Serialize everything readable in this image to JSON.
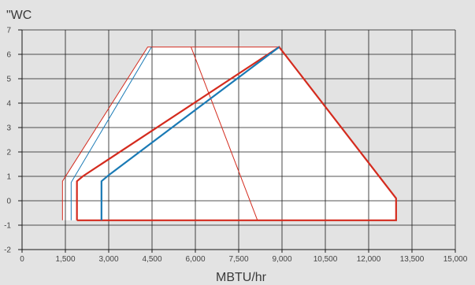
{
  "chart_data": {
    "type": "line",
    "ylabel": "\"WC",
    "xlabel": "MBTU/hr",
    "xlim": [
      0,
      15000
    ],
    "ylim": [
      -2,
      7
    ],
    "x_ticks": [
      0,
      1500,
      3000,
      4500,
      6000,
      7500,
      9000,
      10500,
      12000,
      13500,
      15000
    ],
    "x_tick_labels": [
      "0",
      "1,500",
      "3,000",
      "4,500",
      "6,000",
      "7,500",
      "9,000",
      "10,500",
      "12,000",
      "13,500",
      "15,000"
    ],
    "y_ticks": [
      -2,
      -1,
      0,
      1,
      2,
      3,
      4,
      5,
      6,
      7
    ],
    "y_tick_labels": [
      "-2",
      "-1",
      "0",
      "1",
      "2",
      "3",
      "4",
      "5",
      "6",
      "7"
    ],
    "grid": true,
    "envelope": {
      "fill": "#ffffff",
      "x": [
        1400,
        4350,
        8900,
        12950,
        12950,
        1400
      ],
      "y": [
        0.8,
        6.3,
        6.3,
        0.1,
        -0.8,
        -0.8
      ]
    },
    "series": [
      {
        "color": "#d42b1e",
        "width": 1,
        "x": [
          1400,
          1400,
          4350,
          8900
        ],
        "y": [
          -0.8,
          0.8,
          6.3,
          6.3
        ]
      },
      {
        "color": "#d42b1e",
        "width": 1,
        "x": [
          5850,
          8150
        ],
        "y": [
          6.3,
          -0.8
        ]
      },
      {
        "color": "#1a7ab5",
        "width": 1,
        "x": [
          1700,
          1700,
          4480
        ],
        "y": [
          -0.8,
          0.75,
          6.3
        ]
      },
      {
        "color": "#d42b1e",
        "width": 2.2,
        "x": [
          1900,
          1900,
          2100,
          8900,
          12950,
          12950,
          1900
        ],
        "y": [
          -0.8,
          0.8,
          1.0,
          6.3,
          0.1,
          -0.8,
          -0.8
        ]
      },
      {
        "color": "#1a7ab5",
        "width": 2.2,
        "x": [
          2750,
          2750,
          3000,
          8900
        ],
        "y": [
          -0.8,
          0.8,
          1.05,
          6.3
        ]
      }
    ]
  }
}
